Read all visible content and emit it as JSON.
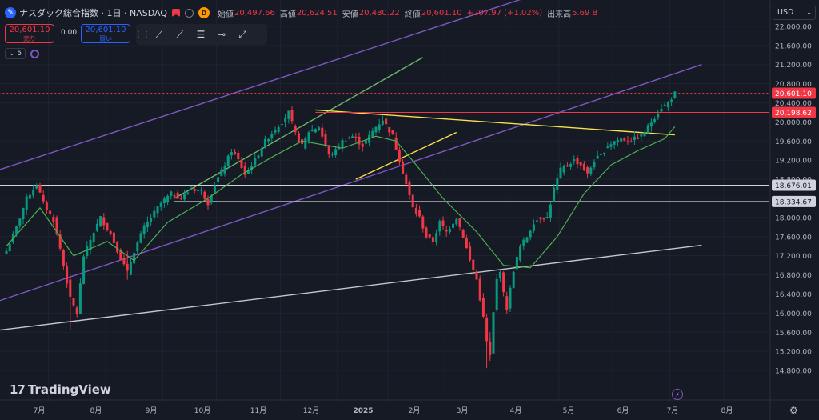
{
  "header": {
    "symbol_title": "ナスダック総合指数 · 1日 · NASDAQ",
    "badge": "D",
    "open_label": "始値",
    "open": "20,497.66",
    "high_label": "高値",
    "high": "20,624.51",
    "low_label": "安値",
    "low": "20,480.22",
    "close_label": "終値",
    "close": "20,601.10",
    "change": "+207.97 (+1.02%)",
    "volume_label": "出来高",
    "volume": "5.69 B"
  },
  "trade": {
    "sell_price": "20,601.10",
    "sell_label": "売り",
    "spread": "0.00",
    "buy_price": "20,601.10",
    "buy_label": "買い"
  },
  "indicators": {
    "count": "5"
  },
  "currency": "USD",
  "brand": "TradingView",
  "colors": {
    "up": "#089981",
    "down": "#f23645",
    "ma": "#4caf50",
    "channel": "#7e57c2",
    "green_trend": "#66bb6a",
    "yellow_trend": "#f7e14c",
    "hline": "#d1d4dc",
    "red_hline": "#f23645"
  },
  "chart_data": {
    "type": "candlestick",
    "x_ticks": [
      "7月",
      "8月",
      "9月",
      "10月",
      "11月",
      "12月",
      "2025",
      "2月",
      "3月",
      "4月",
      "5月",
      "6月",
      "7月",
      "8月"
    ],
    "y_ticks": [
      "22,000.00",
      "21,600.00",
      "21,200.00",
      "20,800.00",
      "20,400.00",
      "20,000.00",
      "19,600.00",
      "19,200.00",
      "18,800.00",
      "18,400.00",
      "18,000.00",
      "17,600.00",
      "17,200.00",
      "16,800.00",
      "16,400.00",
      "16,000.00",
      "15,600.00",
      "15,200.00",
      "14,800.00"
    ],
    "ylim": [
      14650,
      22250
    ],
    "price_labels": [
      {
        "text": "20,601.10",
        "value": 20601.1,
        "color": "#f23645"
      },
      {
        "text": "20,198.62",
        "value": 20198.62,
        "color": "#f23645"
      },
      {
        "text": "18,676.01",
        "value": 18676.01,
        "color": "#d1d4dc"
      },
      {
        "text": "18,334.67",
        "value": 18334.67,
        "color": "#d1d4dc"
      }
    ],
    "anchors": [
      [
        0,
        17300
      ],
      [
        3,
        17800
      ],
      [
        6,
        18400
      ],
      [
        9,
        18700
      ],
      [
        11,
        18300
      ],
      [
        14,
        17950
      ],
      [
        16,
        17350
      ],
      [
        19,
        16300
      ],
      [
        21,
        16000
      ],
      [
        23,
        17200
      ],
      [
        26,
        17700
      ],
      [
        28,
        18000
      ],
      [
        31,
        17650
      ],
      [
        34,
        17150
      ],
      [
        36,
        16850
      ],
      [
        38,
        17300
      ],
      [
        41,
        17800
      ],
      [
        44,
        18100
      ],
      [
        46,
        18300
      ],
      [
        49,
        18500
      ],
      [
        52,
        18400
      ],
      [
        55,
        18600
      ],
      [
        58,
        18550
      ],
      [
        60,
        18300
      ],
      [
        62,
        18700
      ],
      [
        65,
        19100
      ],
      [
        67,
        19400
      ],
      [
        69,
        19200
      ],
      [
        71,
        18900
      ],
      [
        74,
        19200
      ],
      [
        77,
        19600
      ],
      [
        80,
        19850
      ],
      [
        82,
        20000
      ],
      [
        84,
        20200
      ],
      [
        86,
        19750
      ],
      [
        88,
        19500
      ],
      [
        90,
        19800
      ],
      [
        93,
        19900
      ],
      [
        96,
        19300
      ],
      [
        98,
        19400
      ],
      [
        100,
        19600
      ],
      [
        103,
        19700
      ],
      [
        106,
        19500
      ],
      [
        108,
        19700
      ],
      [
        110,
        19900
      ],
      [
        112,
        20050
      ],
      [
        115,
        19700
      ],
      [
        117,
        19200
      ],
      [
        119,
        18700
      ],
      [
        121,
        18200
      ],
      [
        123,
        18000
      ],
      [
        125,
        17600
      ],
      [
        127,
        17500
      ],
      [
        129,
        17900
      ],
      [
        131,
        17700
      ],
      [
        134,
        18000
      ],
      [
        136,
        17600
      ],
      [
        138,
        17100
      ],
      [
        140,
        16700
      ],
      [
        141,
        16300
      ],
      [
        142,
        15900
      ],
      [
        143,
        15400
      ],
      [
        144,
        15100
      ],
      [
        145,
        16000
      ],
      [
        146,
        16700
      ],
      [
        147,
        16900
      ],
      [
        148,
        16400
      ],
      [
        149,
        16100
      ],
      [
        150,
        16500
      ],
      [
        151,
        16900
      ],
      [
        153,
        17400
      ],
      [
        155,
        17600
      ],
      [
        157,
        17900
      ],
      [
        159,
        18000
      ],
      [
        161,
        18000
      ],
      [
        163,
        18600
      ],
      [
        165,
        19000
      ],
      [
        167,
        19100
      ],
      [
        169,
        19200
      ],
      [
        171,
        19100
      ],
      [
        173,
        18900
      ],
      [
        175,
        19200
      ],
      [
        177,
        19300
      ],
      [
        179,
        19500
      ],
      [
        181,
        19600
      ],
      [
        183,
        19650
      ],
      [
        185,
        19600
      ],
      [
        187,
        19650
      ],
      [
        189,
        19700
      ],
      [
        191,
        19900
      ],
      [
        193,
        20100
      ],
      [
        195,
        20300
      ],
      [
        197,
        20400
      ],
      [
        199,
        20601.1
      ]
    ],
    "ma_series": [
      [
        0,
        17400
      ],
      [
        10,
        18200
      ],
      [
        20,
        17200
      ],
      [
        30,
        17500
      ],
      [
        38,
        17100
      ],
      [
        48,
        17900
      ],
      [
        60,
        18400
      ],
      [
        70,
        18900
      ],
      [
        80,
        19300
      ],
      [
        88,
        19600
      ],
      [
        100,
        19450
      ],
      [
        110,
        19700
      ],
      [
        116,
        19600
      ],
      [
        122,
        19100
      ],
      [
        130,
        18400
      ],
      [
        140,
        17700
      ],
      [
        148,
        17000
      ],
      [
        156,
        16950
      ],
      [
        164,
        17600
      ],
      [
        172,
        18500
      ],
      [
        180,
        19100
      ],
      [
        188,
        19400
      ],
      [
        196,
        19650
      ],
      [
        199,
        19900
      ]
    ],
    "trendlines": [
      {
        "name": "channel-upper",
        "color": "#7e57c2",
        "points": [
          [
            -13,
            18750
          ],
          [
            207,
            23800
          ]
        ]
      },
      {
        "name": "channel-lower",
        "color": "#7e57c2",
        "points": [
          [
            -13,
            16000
          ],
          [
            207,
            21200
          ]
        ]
      },
      {
        "name": "green-trend",
        "color": "#66bb6a",
        "points": [
          [
            50,
            18400
          ],
          [
            124,
            21350
          ]
        ]
      },
      {
        "name": "yellow-top",
        "color": "#f7e14c",
        "points": [
          [
            92,
            20250
          ],
          [
            199,
            19730
          ]
        ]
      },
      {
        "name": "yellow-lower",
        "color": "#f7e14c",
        "points": [
          [
            104,
            18800
          ],
          [
            134,
            19780
          ]
        ]
      },
      {
        "name": "grey-support",
        "color": "#c5c7ce",
        "points": [
          [
            -13,
            15550
          ],
          [
            207,
            17420
          ]
        ]
      }
    ],
    "hlines": [
      {
        "value": 20601.1,
        "color": "#f23645",
        "dashed": true,
        "x_from": -13
      },
      {
        "value": 20198.62,
        "color": "#f23645",
        "dashed": false,
        "x_from": 92
      },
      {
        "value": 18676.01,
        "color": "#d1d4dc",
        "dashed": false,
        "x_from": -13
      },
      {
        "value": 18334.67,
        "color": "#d1d4dc",
        "dashed": false,
        "x_from": 50
      }
    ]
  }
}
